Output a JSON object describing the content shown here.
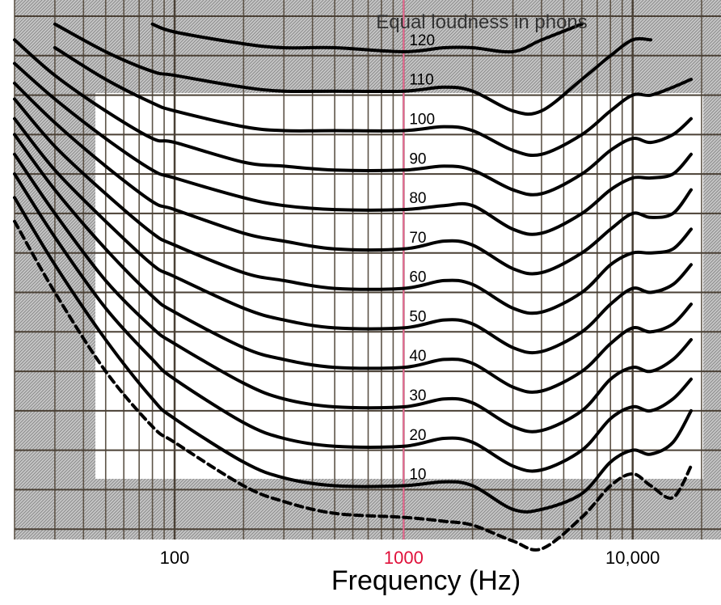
{
  "chart_data": {
    "type": "line",
    "title": "Equal loudness in phons",
    "xlabel": "Frequency (Hz)",
    "ylabel": "",
    "x_scale": "log",
    "xlim": [
      20,
      20000
    ],
    "ylim": [
      -10,
      130
    ],
    "x_tick_labels": [
      {
        "value": 100,
        "label": "100",
        "color": "#000000"
      },
      {
        "value": 1000,
        "label": "1000",
        "color": "#e0103a"
      },
      {
        "value": 10000,
        "label": "10,000",
        "color": "#000000"
      }
    ],
    "highlight_x": 1000,
    "grid": true,
    "x": [
      20,
      30,
      50,
      80,
      100,
      200,
      300,
      500,
      1000,
      1500,
      2000,
      3000,
      4000,
      6000,
      8000,
      10000,
      12000,
      15000,
      18000
    ],
    "series": [
      {
        "name": "",
        "label": "",
        "style": "dashed",
        "values": [
          78,
          60,
          40,
          26,
          22,
          11,
          7,
          4,
          3,
          2,
          1,
          -3,
          -5,
          3,
          11,
          14,
          11,
          8,
          16
        ]
      },
      {
        "name": "",
        "label": "10",
        "style": "solid",
        "values": [
          84,
          67,
          48,
          33,
          28,
          17,
          13,
          11,
          11,
          12,
          11,
          5,
          5,
          9,
          17,
          20,
          19,
          22,
          30
        ]
      },
      {
        "name": "",
        "label": "20",
        "style": "solid",
        "values": [
          90,
          74,
          56,
          43,
          38,
          27,
          23,
          21,
          21,
          23,
          22,
          16,
          15,
          20,
          28,
          31,
          30,
          33,
          38
        ]
      },
      {
        "name": "",
        "label": "30",
        "style": "solid",
        "values": [
          95,
          80,
          63,
          51,
          47,
          37,
          33,
          31,
          31,
          33,
          32,
          26,
          25,
          30,
          38,
          41,
          40,
          43,
          48
        ]
      },
      {
        "name": "",
        "label": "40",
        "style": "solid",
        "values": [
          100,
          86,
          71,
          59,
          55,
          46,
          43,
          41,
          41,
          43,
          42,
          36,
          35,
          40,
          47,
          51,
          50,
          52,
          57
        ]
      },
      {
        "name": "",
        "label": "50",
        "style": "solid",
        "values": [
          104,
          91,
          78,
          67,
          64,
          56,
          53,
          51,
          51,
          53,
          52,
          46,
          45,
          50,
          57,
          61,
          60,
          62,
          67
        ]
      },
      {
        "name": "",
        "label": "60",
        "style": "solid",
        "values": [
          109,
          97,
          85,
          75,
          72,
          65,
          63,
          61,
          61,
          63,
          62,
          56,
          55,
          60,
          67,
          70,
          70,
          71,
          76
        ]
      },
      {
        "name": "",
        "label": "70",
        "style": "solid",
        "values": [
          113,
          103,
          92,
          83,
          81,
          75,
          73,
          71,
          71,
          73,
          72,
          66,
          65,
          70,
          76,
          80,
          79,
          80,
          86
        ]
      },
      {
        "name": "",
        "label": "80",
        "style": "solid",
        "values": [
          118,
          109,
          99,
          91,
          89,
          84,
          82,
          81,
          81,
          82,
          82,
          76,
          75,
          80,
          86,
          89,
          89,
          90,
          95
        ]
      },
      {
        "name": "",
        "label": "90",
        "style": "solid",
        "values": [
          124,
          115,
          106,
          99,
          98,
          93,
          92,
          91,
          91,
          92,
          91,
          86,
          85,
          90,
          96,
          99,
          98,
          100,
          104
        ]
      },
      {
        "name": "",
        "label": "100",
        "style": "solid",
        "values": [
          null,
          122,
          114,
          108,
          106,
          102,
          101,
          101,
          101,
          102,
          101,
          96,
          95,
          100,
          106,
          110,
          110,
          112,
          114
        ]
      },
      {
        "name": "",
        "label": "110",
        "style": "solid",
        "values": [
          null,
          128,
          121,
          116,
          115,
          112,
          111,
          111,
          111,
          112,
          111,
          106,
          106,
          114,
          120,
          124,
          124,
          null,
          null
        ]
      },
      {
        "name": "",
        "label": "120",
        "style": "solid",
        "values": [
          null,
          null,
          null,
          128,
          126,
          123,
          122,
          122,
          121,
          122,
          122,
          121,
          124,
          128,
          null,
          null,
          null,
          null,
          null
        ]
      }
    ]
  }
}
